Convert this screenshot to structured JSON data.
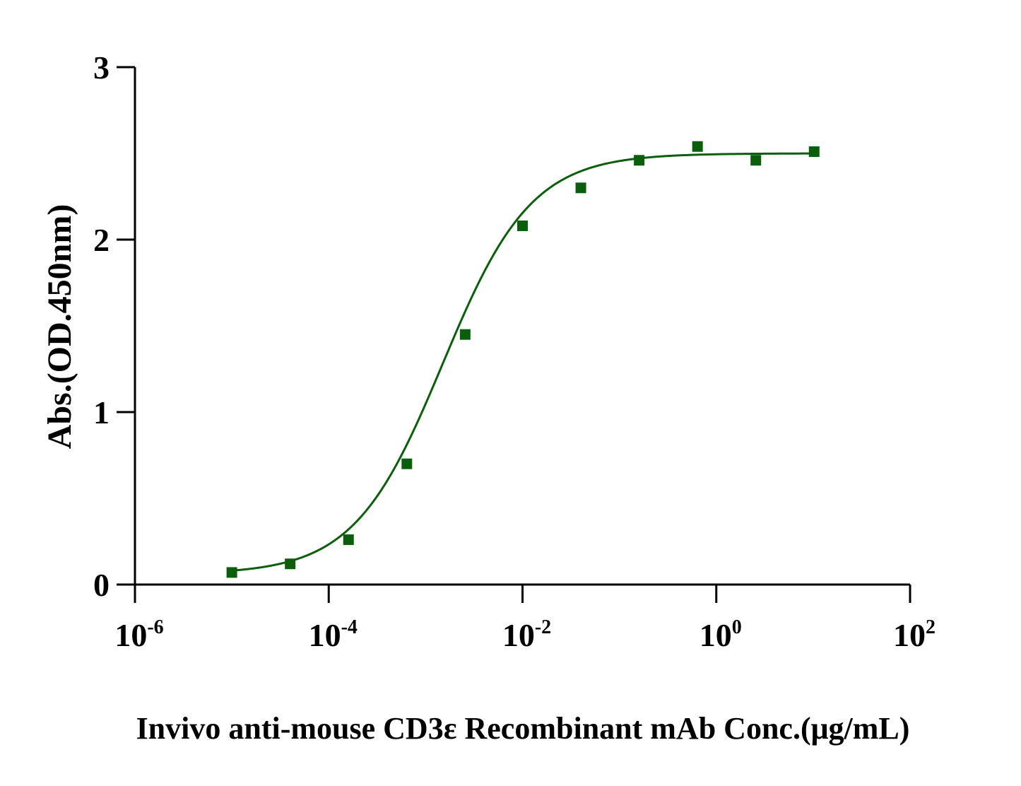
{
  "chart_data": {
    "type": "scatter",
    "title": "",
    "xlabel": "Invivo anti-mouse CD3ε Recombinant mAb Conc.(μg/mL)",
    "ylabel": "Abs.(OD.450nm)",
    "xscale": "log",
    "xlim": [
      1e-06,
      100
    ],
    "ylim": [
      0,
      3
    ],
    "grid": false,
    "legend": "none",
    "colors": {
      "series": "#0b5e0b",
      "axis": "#000000"
    },
    "xticks": [
      {
        "base": "10",
        "exp": "-6",
        "value": 1e-06
      },
      {
        "base": "10",
        "exp": "-4",
        "value": 0.0001
      },
      {
        "base": "10",
        "exp": "-2",
        "value": 0.01
      },
      {
        "base": "10",
        "exp": "0",
        "value": 1
      },
      {
        "base": "10",
        "exp": "2",
        "value": 100
      }
    ],
    "yticks": [
      {
        "label": "0",
        "value": 0
      },
      {
        "label": "1",
        "value": 1
      },
      {
        "label": "2",
        "value": 2
      },
      {
        "label": "3",
        "value": 3
      }
    ],
    "series": [
      {
        "marker": "square",
        "x": [
          1e-05,
          4e-05,
          0.00016,
          0.00064,
          0.00256,
          0.01,
          0.04,
          0.16,
          0.64,
          2.56,
          10.24
        ],
        "y": [
          0.07,
          0.12,
          0.26,
          0.7,
          1.45,
          2.08,
          2.3,
          2.46,
          2.54,
          2.46,
          2.51
        ]
      }
    ],
    "fit": {
      "type": "4PL",
      "bottom": 0.06,
      "top": 2.5,
      "ec50": 0.0015,
      "hill": 0.95
    }
  }
}
